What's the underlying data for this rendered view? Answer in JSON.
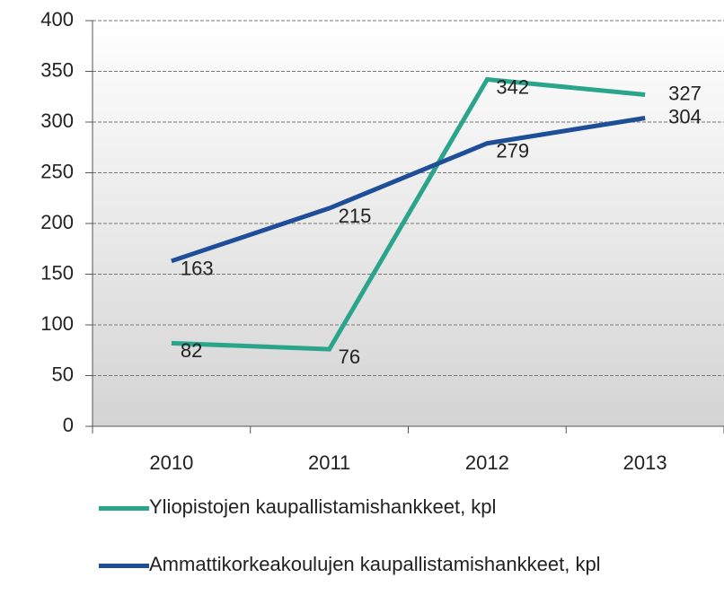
{
  "chart_data": {
    "type": "line",
    "categories": [
      "2010",
      "2011",
      "2012",
      "2013"
    ],
    "series": [
      {
        "name": "Yliopistojen kaupallistamishankkeet, kpl",
        "color": "#2aa58c",
        "values": [
          82,
          76,
          342,
          327
        ]
      },
      {
        "name": "Ammattikorkeakoulujen kaupallistamishankkeet, kpl",
        "color": "#1f4e99",
        "values": [
          163,
          215,
          279,
          304
        ]
      }
    ],
    "ylim": [
      0,
      400
    ],
    "yticks": [
      0,
      50,
      100,
      150,
      200,
      250,
      300,
      350,
      400
    ],
    "grid": true,
    "legend": "bottom"
  }
}
